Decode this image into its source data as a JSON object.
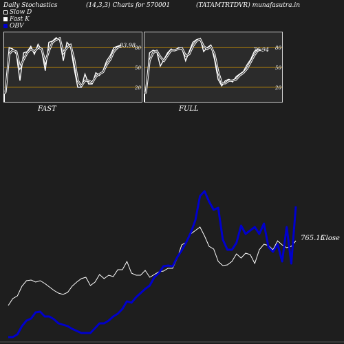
{
  "header": {
    "title": "Daily Stochastics",
    "params": "(14,3,3) Charts for 570001",
    "symbol": "(TATAMTRTDVR) munafasutra.in"
  },
  "legend": [
    {
      "label": "Slow  D",
      "color": "#ffffff",
      "style": "outline"
    },
    {
      "label": "Fast K",
      "color": "#ffffff",
      "style": "filled"
    },
    {
      "label": "OBV",
      "color": "#0000cc",
      "style": "filled"
    }
  ],
  "colors": {
    "background": "#1e1e1e",
    "panel_bg": "#2b2b2b",
    "level_line": "#b8860b",
    "stoch_line": "#ffffff",
    "obv_line": "#0000cc",
    "price_line": "#ffffff"
  },
  "chart_data": [
    {
      "type": "line",
      "panel": "FAST",
      "ylim": [
        0,
        100
      ],
      "levels": [
        20,
        50,
        80
      ],
      "level_labels": [
        "20",
        "50",
        "80"
      ],
      "last_value_label": "83.98",
      "series": [
        {
          "name": "Fast K",
          "values": [
            10,
            80,
            78,
            70,
            30,
            72,
            74,
            82,
            70,
            85,
            76,
            45,
            88,
            90,
            95,
            92,
            60,
            88,
            82,
            48,
            20,
            20,
            40,
            25,
            25,
            42,
            38,
            45,
            60,
            68,
            80,
            82,
            83.98
          ]
        },
        {
          "name": "Slow  D",
          "values": [
            12,
            70,
            76,
            74,
            50,
            62,
            72,
            78,
            74,
            80,
            78,
            58,
            75,
            88,
            92,
            94,
            72,
            80,
            84,
            62,
            30,
            22,
            30,
            30,
            27,
            36,
            40,
            43,
            54,
            62,
            74,
            80,
            82
          ]
        }
      ]
    },
    {
      "type": "line",
      "panel": "FULL",
      "ylim": [
        0,
        100
      ],
      "levels": [
        20,
        50,
        80
      ],
      "level_labels": [
        "20",
        "50",
        "80"
      ],
      "last_value_label": "76.94",
      "series": [
        {
          "name": "Full K",
          "values": [
            10,
            72,
            76,
            74,
            52,
            62,
            72,
            78,
            75,
            80,
            79,
            60,
            74,
            88,
            92,
            94,
            74,
            80,
            84,
            62,
            32,
            22,
            30,
            32,
            28,
            36,
            40,
            44,
            54,
            62,
            74,
            78,
            76.94
          ]
        },
        {
          "name": "Full D",
          "values": [
            12,
            60,
            72,
            75,
            66,
            60,
            68,
            76,
            76,
            78,
            79,
            68,
            70,
            82,
            90,
            93,
            82,
            78,
            82,
            70,
            44,
            26,
            26,
            30,
            30,
            32,
            38,
            42,
            48,
            58,
            68,
            76,
            77
          ]
        }
      ]
    },
    {
      "type": "line",
      "panel": "main",
      "last_value_label": "765.15",
      "close_label": "Close",
      "series": [
        {
          "name": "OBV",
          "values": [
            490,
            490,
            486,
            474,
            466,
            463,
            454,
            453,
            460,
            460,
            464,
            470,
            472,
            474,
            478,
            481,
            484,
            484,
            484,
            477,
            470,
            470,
            466,
            460,
            456,
            449,
            438,
            440,
            432,
            426,
            420,
            415,
            403,
            397,
            387,
            386,
            387,
            374,
            364,
            352,
            338,
            320,
            285,
            278,
            293,
            305,
            302,
            348,
            363,
            363,
            353,
            328,
            340,
            335,
            330,
            340,
            325,
            359,
            366,
            355,
            380,
            330,
            383,
            300
          ]
        },
        {
          "name": "Price",
          "values": [
            444,
            434,
            430,
            416,
            408,
            407,
            410,
            408,
            412,
            417,
            422,
            426,
            428,
            425,
            416,
            410,
            405,
            403,
            415,
            410,
            399,
            405,
            400,
            402,
            392,
            392,
            380,
            397,
            400,
            400,
            393,
            403,
            399,
            395,
            394,
            390,
            390,
            376,
            356,
            352,
            340,
            335,
            330,
            343,
            358,
            362,
            380,
            386,
            385,
            380,
            369,
            375,
            368,
            370,
            383,
            363,
            355,
            357,
            363,
            350,
            356,
            360,
            358,
            350
          ]
        }
      ]
    }
  ]
}
